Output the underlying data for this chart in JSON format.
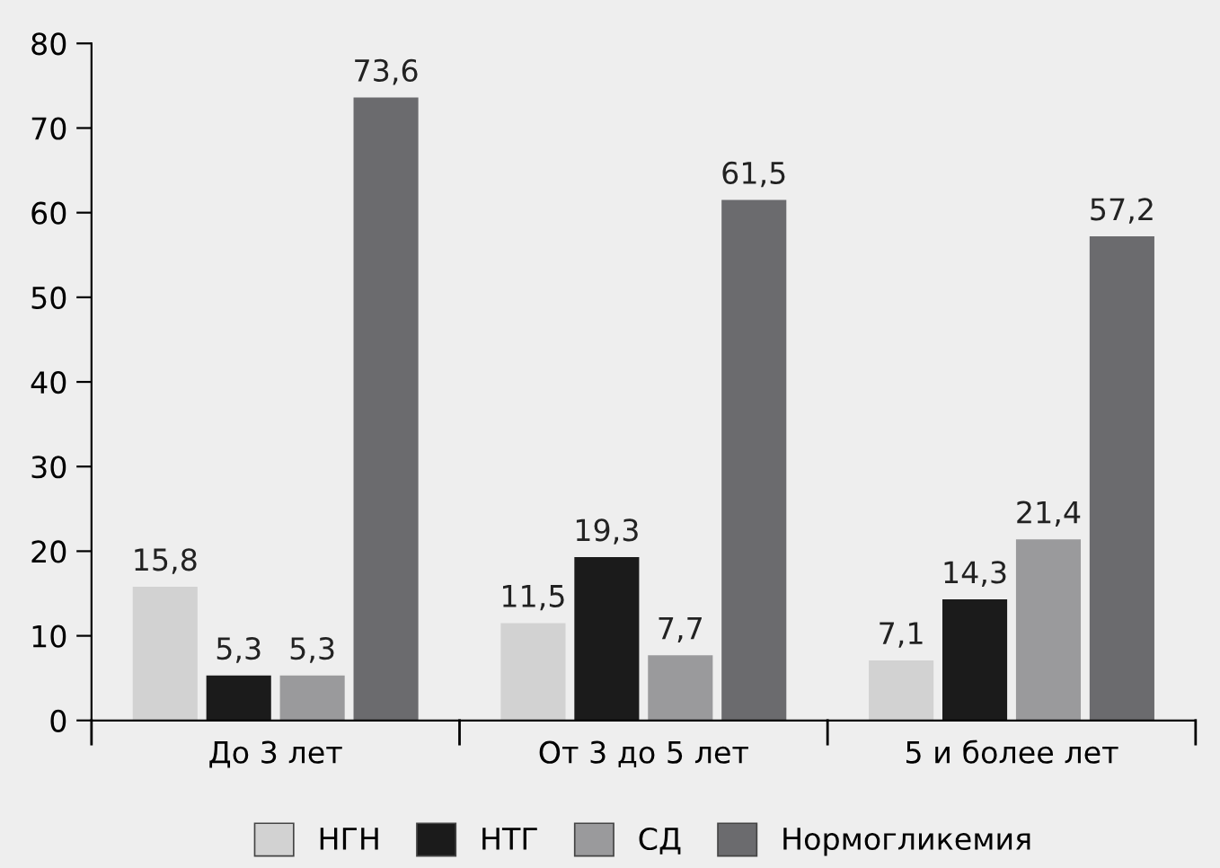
{
  "chart_data": {
    "type": "bar",
    "categories": [
      "До 3 лет",
      "От 3 до 5 лет",
      "5 и более лет"
    ],
    "series": [
      {
        "name": "НГН",
        "color": "#d2d2d2",
        "values": [
          15.8,
          11.5,
          7.1
        ],
        "value_labels": [
          "15,8",
          "11,5",
          "7,1"
        ]
      },
      {
        "name": "НТГ",
        "color": "#1b1b1b",
        "values": [
          5.3,
          19.3,
          14.3
        ],
        "value_labels": [
          "5,3",
          "19,3",
          "14,3"
        ]
      },
      {
        "name": "СД",
        "color": "#9a9a9c",
        "values": [
          5.3,
          7.7,
          21.4
        ],
        "value_labels": [
          "5,3",
          "7,7",
          "21,4"
        ]
      },
      {
        "name": "Нормогликемия",
        "color": "#6b6b6e",
        "values": [
          73.6,
          61.5,
          57.2
        ],
        "value_labels": [
          "73,6",
          "61,5",
          "57,2"
        ]
      }
    ],
    "ylim": [
      0,
      80
    ],
    "yticks": [
      0,
      10,
      20,
      30,
      40,
      50,
      60,
      70,
      80
    ],
    "grid": false,
    "legend": "bottom"
  }
}
